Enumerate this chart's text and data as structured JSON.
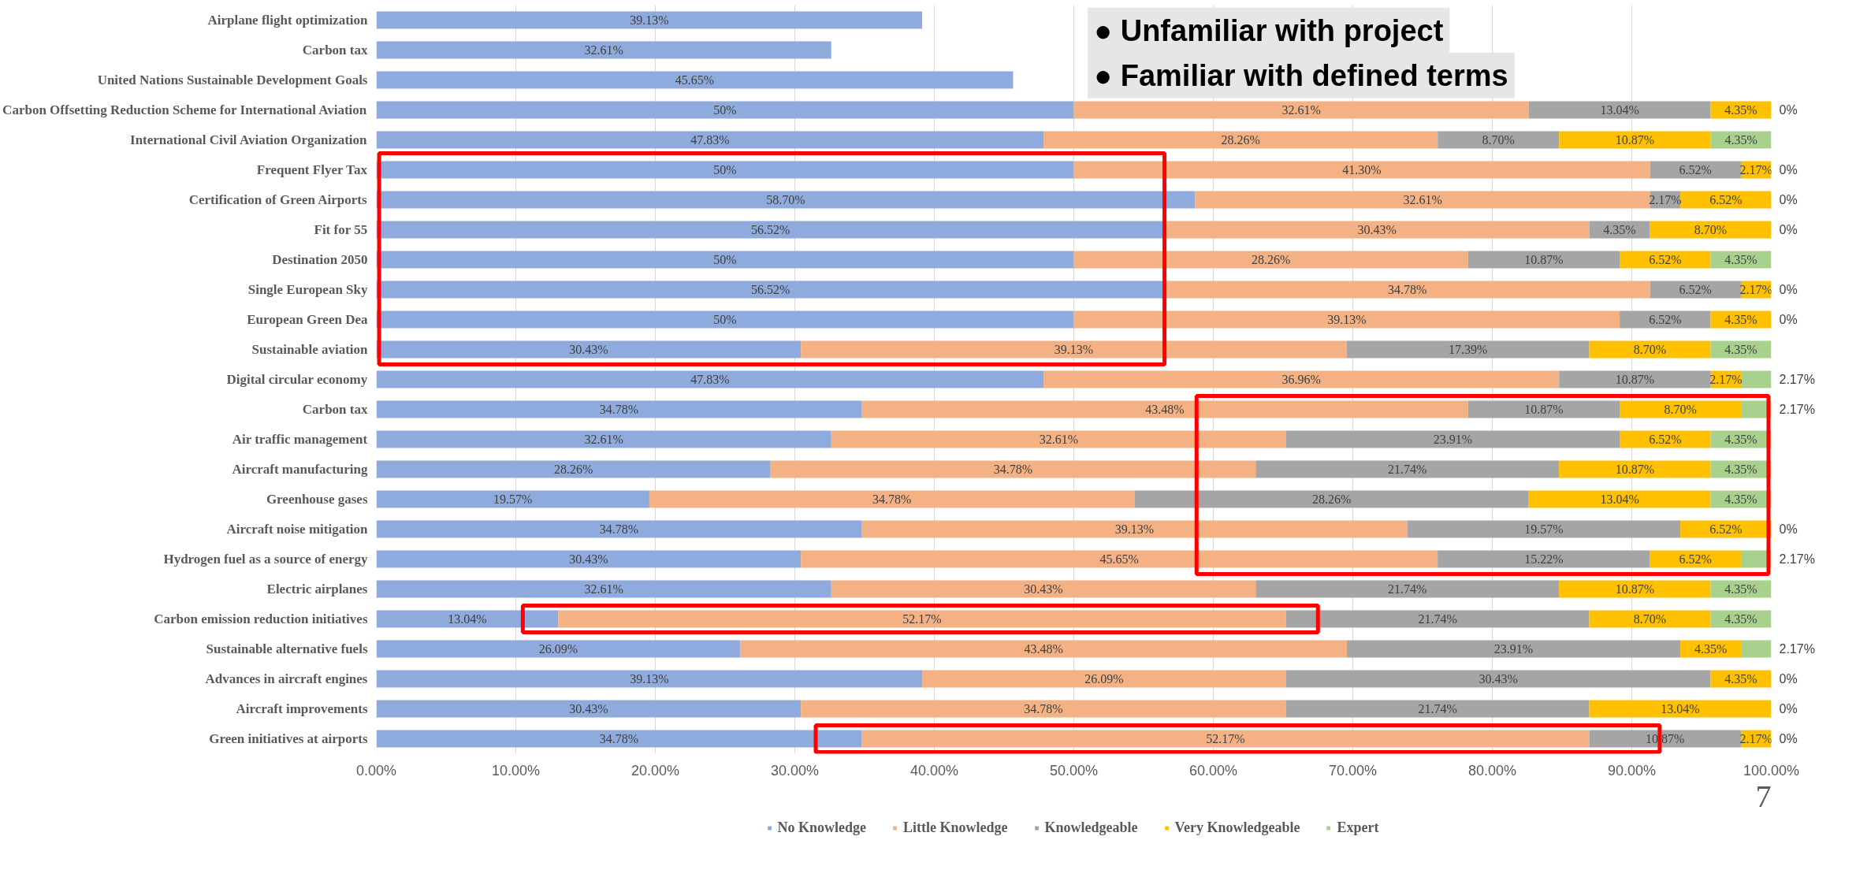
{
  "chart_data": {
    "type": "bar",
    "orientation": "horizontal",
    "stacked": true,
    "categories": [
      "Airplane flight optimization",
      "Carbon tax",
      "United Nations Sustainable Development Goals",
      "Carbon Offsetting Reduction Scheme for International Aviation",
      "International Civil Aviation Organization",
      "Frequent Flyer Tax",
      "Certification of Green Airports",
      "Fit for 55",
      "Destination 2050",
      "Single European Sky",
      "European Green Dea",
      "Sustainable aviation",
      "Digital circular economy",
      "Carbon tax",
      "Air traffic management",
      "Aircraft manufacturing",
      "Greenhouse gases",
      "Aircraft noise mitigation",
      "Hydrogen fuel as a source of energy",
      "Electric airplanes",
      "Carbon emission reduction initiatives",
      "Sustainable alternative fuels",
      "Advances in aircraft engines",
      "Aircraft improvements",
      "Green initiatives at airports"
    ],
    "series": [
      {
        "name": "No Knowledge",
        "color": "#8faadc",
        "values": [
          39.13,
          32.61,
          45.65,
          50,
          47.83,
          50,
          58.7,
          56.52,
          50,
          56.52,
          50,
          30.43,
          47.83,
          34.78,
          32.61,
          28.26,
          19.57,
          34.78,
          30.43,
          32.61,
          13.04,
          26.09,
          39.13,
          30.43,
          34.78
        ],
        "value_labels": [
          "39.13%",
          "32.61%",
          "45.65%",
          "50%",
          "47.83%",
          "50%",
          "58.70%",
          "56.52%",
          "50%",
          "56.52%",
          "50%",
          "30.43%",
          "47.83%",
          "34.78%",
          "32.61%",
          "28.26%",
          "19.57%",
          "34.78%",
          "30.43%",
          "32.61%",
          "13.04%",
          "26.09%",
          "39.13%",
          "30.43%",
          "34.78%"
        ]
      },
      {
        "name": "Little Knowledge",
        "color": "#f4b183",
        "values": [
          null,
          null,
          null,
          32.61,
          28.26,
          41.3,
          32.61,
          30.43,
          28.26,
          34.78,
          39.13,
          39.13,
          36.96,
          43.48,
          32.61,
          34.78,
          34.78,
          39.13,
          45.65,
          30.43,
          52.17,
          43.48,
          26.09,
          34.78,
          52.17
        ],
        "value_labels": [
          null,
          null,
          null,
          "32.61%",
          "28.26%",
          "41.30%",
          "32.61%",
          "30.43%",
          "28.26%",
          "34.78%",
          "39.13%",
          "39.13%",
          "36.96%",
          "43.48%",
          "32.61%",
          "34.78%",
          "34.78%",
          "39.13%",
          "45.65%",
          "30.43%",
          "52.17%",
          "43.48%",
          "26.09%",
          "34.78%",
          "52.17%"
        ]
      },
      {
        "name": "Knowledgeable",
        "color": "#a5a5a5",
        "values": [
          null,
          null,
          null,
          13.04,
          8.7,
          6.52,
          2.17,
          4.35,
          10.87,
          6.52,
          6.52,
          17.39,
          10.87,
          10.87,
          23.91,
          21.74,
          28.26,
          19.57,
          15.22,
          21.74,
          21.74,
          23.91,
          30.43,
          21.74,
          10.87
        ],
        "value_labels": [
          null,
          null,
          null,
          "13.04%",
          "8.70%",
          "6.52%",
          "2.17%",
          "4.35%",
          "10.87%",
          "6.52%",
          "6.52%",
          "17.39%",
          "10.87%",
          "10.87%",
          "23.91%",
          "21.74%",
          "28.26%",
          "19.57%",
          "15.22%",
          "21.74%",
          "21.74%",
          "23.91%",
          "30.43%",
          "21.74%",
          "10.87%"
        ]
      },
      {
        "name": "Very Knowledgeable",
        "color": "#ffc000",
        "values": [
          null,
          null,
          null,
          4.35,
          10.87,
          2.17,
          6.52,
          8.7,
          6.52,
          2.17,
          4.35,
          8.7,
          2.17,
          8.7,
          6.52,
          10.87,
          13.04,
          6.52,
          6.52,
          10.87,
          8.7,
          4.35,
          4.35,
          13.04,
          2.17
        ],
        "value_labels": [
          null,
          null,
          null,
          "4.35%",
          "10.87%",
          "2.17%",
          "6.52%",
          "8.70%",
          "6.52%",
          "2.17%",
          "4.35%",
          "8.70%",
          "2.17%",
          "8.70%",
          "6.52%",
          "10.87%",
          "13.04%",
          "6.52%",
          "6.52%",
          "10.87%",
          "8.70%",
          "4.35%",
          "4.35%",
          "13.04%",
          "2.17%"
        ]
      },
      {
        "name": "Expert",
        "color": "#a9d18e",
        "values": [
          null,
          null,
          null,
          0,
          4.35,
          0,
          0,
          0,
          4.35,
          0,
          0,
          4.35,
          2.17,
          2.17,
          4.35,
          4.35,
          4.35,
          0,
          2.17,
          4.35,
          4.35,
          2.17,
          0,
          0,
          0
        ],
        "value_labels": [
          null,
          null,
          null,
          "0%",
          "4.35%",
          "0%",
          "0%",
          "0%",
          "4.35%",
          "0%",
          "0%",
          "4.35%",
          "2.17%",
          "2.17%",
          "4.35%",
          "4.35%",
          "4.35%",
          "0%",
          "2.17%",
          "4.35%",
          "4.35%",
          "2.17%",
          "0%",
          "0%",
          "0%"
        ]
      }
    ],
    "xlim": [
      0,
      100
    ],
    "xticks": [
      {
        "value": 0,
        "label": "0.00%"
      },
      {
        "value": 10,
        "label": "10.00%"
      },
      {
        "value": 20,
        "label": "20.00%"
      },
      {
        "value": 30,
        "label": "30.00%"
      },
      {
        "value": 40,
        "label": "40.00%"
      },
      {
        "value": 50,
        "label": "50.00%"
      },
      {
        "value": 60,
        "label": "60.00%"
      },
      {
        "value": 70,
        "label": "70.00%"
      },
      {
        "value": 80,
        "label": "80.00%"
      },
      {
        "value": 90,
        "label": "90.00%"
      },
      {
        "value": 100,
        "label": "100.00%"
      }
    ],
    "grid": "x",
    "legend": "bottom",
    "annotations": [
      "● Unfamiliar with project",
      "● Familiar with defined terms",
      "7"
    ]
  }
}
